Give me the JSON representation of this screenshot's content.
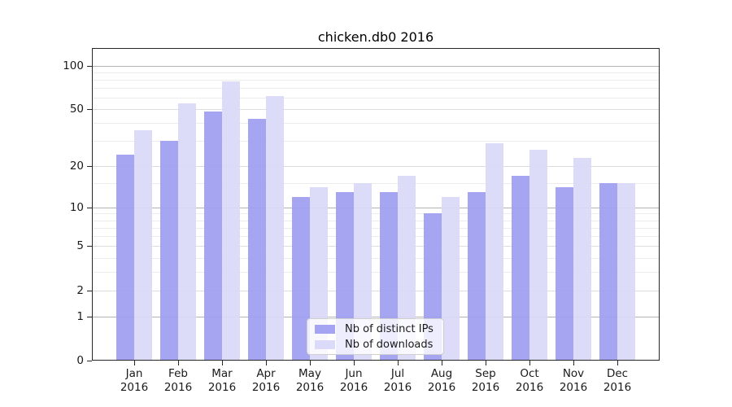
{
  "chart_data": {
    "type": "bar",
    "title": "chicken.db0 2016",
    "categories": [
      "Jan",
      "Feb",
      "Mar",
      "Apr",
      "May",
      "Jun",
      "Jul",
      "Aug",
      "Sep",
      "Oct",
      "Nov",
      "Dec"
    ],
    "year_label": "2016",
    "series": [
      {
        "name": "Nb of distinct IPs",
        "color": "#9e9ef1",
        "legend_color": "#a4a4f2",
        "values": [
          24,
          30,
          48,
          43,
          12,
          13,
          13,
          9,
          13,
          17,
          14,
          15
        ]
      },
      {
        "name": "Nb of downloads",
        "color": "#d9d9f9",
        "legend_color": "#dbdbf9",
        "values": [
          36,
          55,
          78,
          62,
          14,
          15,
          17,
          12,
          29,
          26,
          23,
          15
        ]
      }
    ],
    "xlabel": "",
    "ylabel": "",
    "yscale": "log1p",
    "ylim": [
      0,
      132
    ],
    "yticks": [
      100,
      50,
      20,
      10,
      5,
      2,
      1,
      0
    ],
    "grid_values": [
      1,
      2,
      3,
      4,
      5,
      6,
      7,
      8,
      9,
      10,
      15,
      20,
      30,
      40,
      50,
      60,
      70,
      80,
      90,
      100
    ],
    "legend": {
      "position": "lower center",
      "entries": [
        "Nb of distinct IPs",
        "Nb of downloads"
      ]
    }
  }
}
